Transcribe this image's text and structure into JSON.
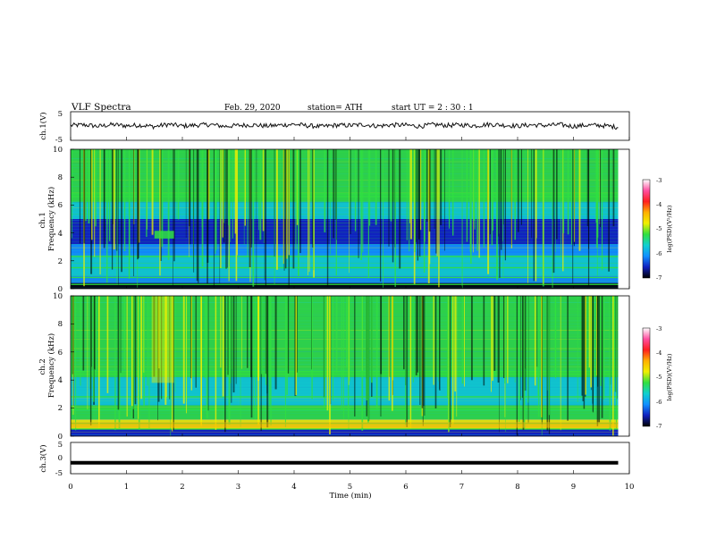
{
  "header": {
    "title": "VLF  Spectra",
    "date": "Feb. 29, 2020",
    "station": "station= ATH",
    "start": "start  UT  =   2  : 30 : 1"
  },
  "colors": {
    "colormap": [
      "#ffffff",
      "#ff4fa0",
      "#ff1f1f",
      "#ffb000",
      "#f0f000",
      "#30e040",
      "#10d0d0",
      "#1090ff",
      "#1020c0",
      "#000000"
    ],
    "trace": "#111111"
  },
  "chart_data": [
    {
      "type": "line",
      "name": "ch1-waveform",
      "ylabel": "ch.1(V)",
      "ylim": [
        -5,
        5
      ],
      "yticks": [
        "5",
        "-5"
      ],
      "xlim": [
        0,
        10
      ],
      "series": [
        {
          "x": [
            0,
            0.25,
            0.5,
            0.75,
            1,
            1.25,
            1.5,
            1.75,
            2,
            2.25,
            2.5,
            2.75,
            3,
            3.25,
            3.5,
            3.75,
            4,
            4.25,
            4.5,
            4.75,
            5,
            5.25,
            5.5,
            5.75,
            6,
            6.25,
            6.5,
            6.75,
            7,
            7.25,
            7.5,
            7.75,
            8,
            8.25,
            8.5,
            8.75,
            9,
            9.25,
            9.5,
            9.8
          ],
          "values": [
            0.2,
            0.4,
            -0.1,
            0.5,
            0.1,
            0.3,
            -0.2,
            0.6,
            0.0,
            0.3,
            0.5,
            -0.1,
            0.2,
            0.4,
            0.0,
            0.3,
            0.6,
            0.1,
            -0.2,
            0.3,
            0.2,
            0.5,
            0.0,
            0.4,
            0.3,
            -0.1,
            0.5,
            0.2,
            0.4,
            0.1,
            0.6,
            0.3,
            0.0,
            0.4,
            0.2,
            0.5,
            -0.1,
            0.3,
            0.2,
            -0.4
          ]
        }
      ]
    },
    {
      "type": "heatmap",
      "name": "ch1-spectrogram",
      "ylabel": "ch.1\nFrequency  (kHz)",
      "ylim": [
        0,
        10
      ],
      "yticks": [
        "0",
        "2",
        "4",
        "6",
        "8",
        "10"
      ],
      "xlim": [
        0,
        10
      ],
      "colorbar_label": "log(PSD)(V²/Hz)",
      "colorbar_range": [
        -7,
        -3
      ],
      "colorbar_ticks": [
        "-3",
        "-4",
        "-5",
        "-6",
        "-7"
      ],
      "data_end_min": 9.8,
      "features": [
        "persistent lines near 0.3, 0.8, 1.5, 2.3 and 6.6 kHz",
        "noise patch at ~3.9 kHz near 1.6 min",
        "broadband vertical bursts (sferics) throughout"
      ]
    },
    {
      "type": "heatmap",
      "name": "ch2-spectrogram",
      "ylabel": "ch.2\nFrequency  (kHz)",
      "ylim": [
        0,
        10
      ],
      "yticks": [
        "0",
        "2",
        "4",
        "6",
        "8",
        "10"
      ],
      "xlim": [
        0,
        10
      ],
      "colorbar_label": "log(PSD)(V²/Hz)",
      "colorbar_range": [
        -7,
        -3
      ],
      "colorbar_ticks": [
        "-3",
        "-4",
        "-5",
        "-6",
        "-7"
      ],
      "data_end_min": 9.8,
      "features": [
        "strong band 0.5-1 kHz",
        "enhanced activity near 1.6 min at 4-10 kHz",
        "broadband vertical bursts (sferics) throughout"
      ]
    },
    {
      "type": "line",
      "name": "ch3-waveform",
      "ylabel": "ch.3(V)",
      "ylim": [
        -5,
        5
      ],
      "yticks": [
        "5",
        "0",
        "-5"
      ],
      "xlim": [
        0,
        10
      ],
      "xlabel": "Time  (min)",
      "xticks": [
        "0",
        "1",
        "2",
        "3",
        "4",
        "5",
        "6",
        "7",
        "8",
        "9",
        "10"
      ],
      "series": [
        {
          "x": [
            0,
            9.8
          ],
          "values": [
            -1.5,
            -1.5
          ]
        }
      ]
    }
  ]
}
